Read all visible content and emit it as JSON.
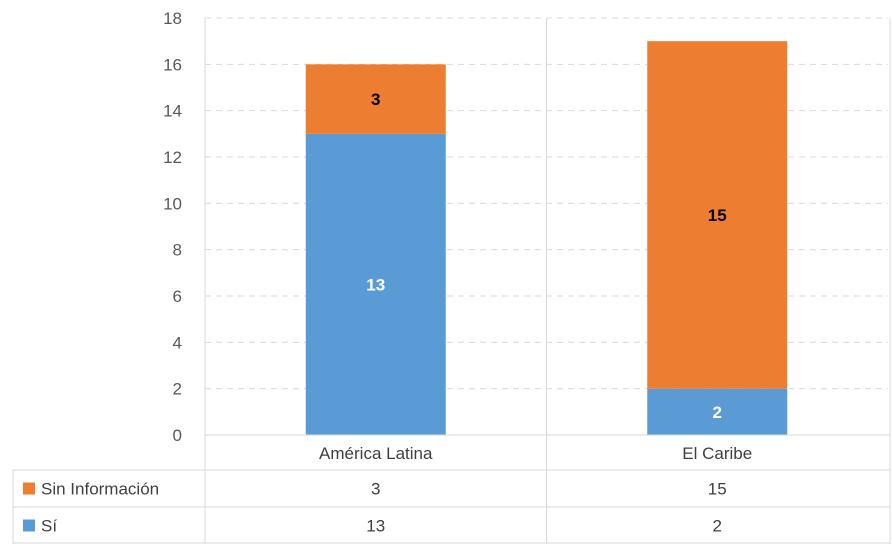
{
  "chart_data": {
    "type": "bar",
    "stacked": true,
    "categories": [
      "América Latina",
      "El Caribe"
    ],
    "series": [
      {
        "name": "Sí",
        "values": [
          13,
          2
        ],
        "color": "#5B9BD5",
        "label_color": "#ffffff"
      },
      {
        "name": "Sin Información",
        "values": [
          3,
          15
        ],
        "color": "#ED7D31",
        "label_color": "#000000"
      }
    ],
    "ylim": [
      0,
      18
    ],
    "yticks": [
      0,
      2,
      4,
      6,
      8,
      10,
      12,
      14,
      16,
      18
    ],
    "grid": true,
    "data_table": true,
    "table_rows": [
      {
        "series": "Sin Información",
        "values": [
          "3",
          "15"
        ]
      },
      {
        "series": "Sí",
        "values": [
          "13",
          "2"
        ]
      }
    ]
  }
}
